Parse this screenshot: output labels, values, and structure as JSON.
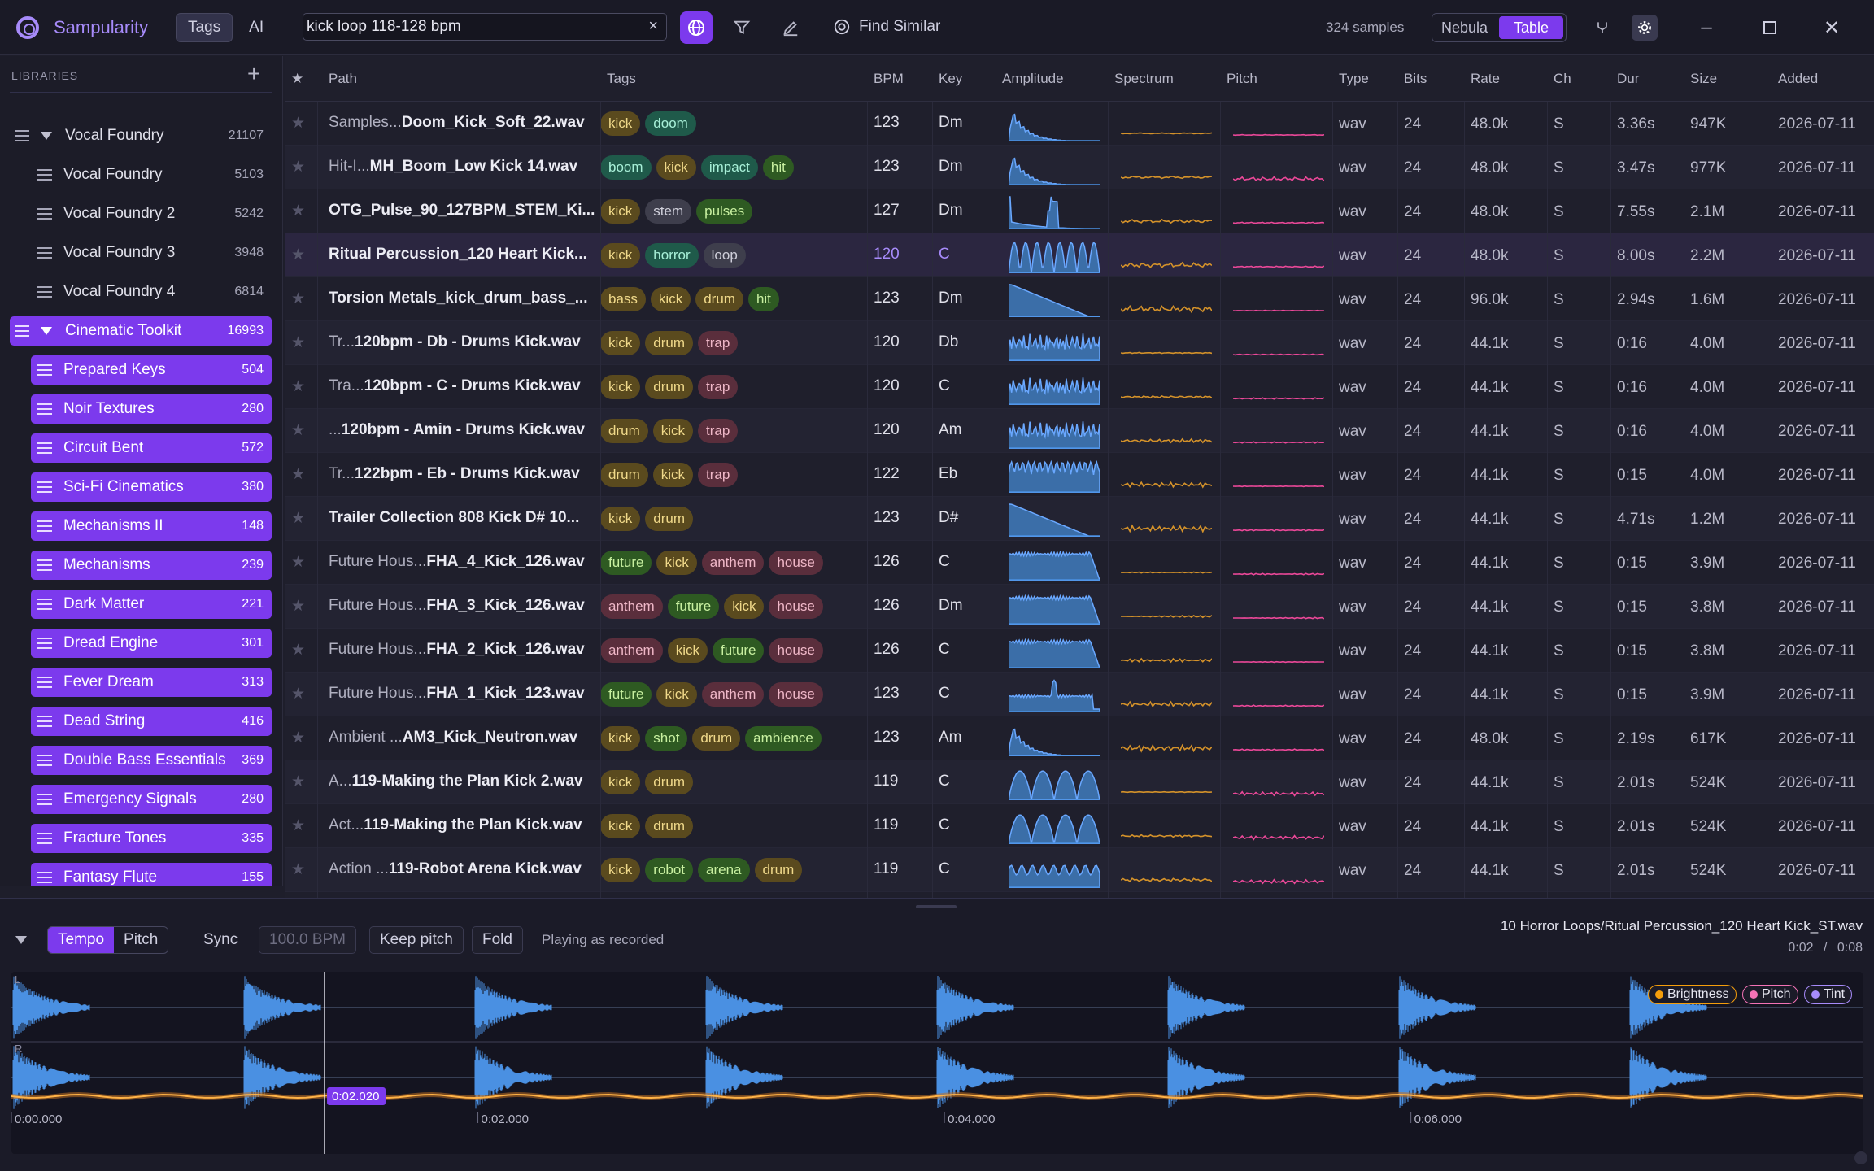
{
  "app": {
    "name": "Sampularity",
    "modes": [
      "Tags",
      "AI"
    ],
    "active_mode": "Tags"
  },
  "search": {
    "value": "kick loop 118-128 bpm"
  },
  "toolbar": {
    "find_similar": "Find Similar",
    "sample_count": "324 samples",
    "views": [
      "Nebula",
      "Table"
    ],
    "active_view": "Table"
  },
  "sidebar": {
    "header": "LIBRARIES",
    "items": [
      {
        "label": "Vocal Foundry",
        "count": "21107",
        "level": 0,
        "expanded": true,
        "style": "plain"
      },
      {
        "label": "Vocal Foundry",
        "count": "5103",
        "level": 1,
        "style": "plain"
      },
      {
        "label": "Vocal Foundry 2",
        "count": "5242",
        "level": 1,
        "style": "plain"
      },
      {
        "label": "Vocal Foundry 3",
        "count": "3948",
        "level": 1,
        "style": "plain"
      },
      {
        "label": "Vocal Foundry 4",
        "count": "6814",
        "level": 1,
        "style": "plain"
      },
      {
        "label": "Cinematic Toolkit",
        "count": "16993",
        "level": 0,
        "expanded": true,
        "style": "selected"
      },
      {
        "label": "Prepared Keys",
        "count": "504",
        "level": 1,
        "style": "selected"
      },
      {
        "label": "Noir Textures",
        "count": "280",
        "level": 1,
        "style": "selected"
      },
      {
        "label": "Circuit Bent",
        "count": "572",
        "level": 1,
        "style": "selected"
      },
      {
        "label": "Sci-Fi Cinematics",
        "count": "380",
        "level": 1,
        "style": "selected"
      },
      {
        "label": "Mechanisms II",
        "count": "148",
        "level": 1,
        "style": "selected"
      },
      {
        "label": "Mechanisms",
        "count": "239",
        "level": 1,
        "style": "selected"
      },
      {
        "label": "Dark Matter",
        "count": "221",
        "level": 1,
        "style": "selected"
      },
      {
        "label": "Dread Engine",
        "count": "301",
        "level": 1,
        "style": "selected"
      },
      {
        "label": "Fever Dream",
        "count": "313",
        "level": 1,
        "style": "selected"
      },
      {
        "label": "Dead String",
        "count": "416",
        "level": 1,
        "style": "selected"
      },
      {
        "label": "Double Bass Essentials",
        "count": "369",
        "level": 1,
        "style": "selected"
      },
      {
        "label": "Emergency Signals",
        "count": "280",
        "level": 1,
        "style": "selected"
      },
      {
        "label": "Fracture Tones",
        "count": "335",
        "level": 1,
        "style": "selected"
      },
      {
        "label": "Fantasy Flute",
        "count": "155",
        "level": 1,
        "style": "selected"
      }
    ]
  },
  "table": {
    "columns": [
      "★",
      "Path",
      "Tags",
      "BPM",
      "Key",
      "Amplitude",
      "Spectrum",
      "Pitch",
      "Type",
      "Bits",
      "Rate",
      "Ch",
      "Dur",
      "Size",
      "Added"
    ],
    "rows": [
      {
        "prefix": "Samples...",
        "name": "Doom_Kick_Soft_22.wav",
        "tags": [
          [
            "kick",
            "amber"
          ],
          [
            "doom",
            "teal"
          ]
        ],
        "bpm": "123",
        "key": "Dm",
        "type": "wav",
        "bits": "24",
        "rate": "48.0k",
        "ch": "S",
        "dur": "3.36s",
        "size": "947K",
        "added": "2026-07-11",
        "amp": "decay"
      },
      {
        "prefix": "Hit-I...",
        "name": "MH_Boom_Low Kick 14.wav",
        "tags": [
          [
            "boom",
            "teal"
          ],
          [
            "kick",
            "amber"
          ],
          [
            "impact",
            "teal"
          ],
          [
            "hit",
            "green"
          ]
        ],
        "bpm": "123",
        "key": "Dm",
        "type": "wav",
        "bits": "24",
        "rate": "48.0k",
        "ch": "S",
        "dur": "3.47s",
        "size": "977K",
        "added": "2026-07-11",
        "amp": "decay"
      },
      {
        "prefix": "",
        "name": "OTG_Pulse_90_127BPM_STEM_Ki...",
        "tags": [
          [
            "kick",
            "amber"
          ],
          [
            "stem",
            "gray"
          ],
          [
            "pulses",
            "green"
          ]
        ],
        "bpm": "127",
        "key": "Dm",
        "type": "wav",
        "bits": "24",
        "rate": "48.0k",
        "ch": "S",
        "dur": "7.55s",
        "size": "2.1M",
        "added": "2026-07-11",
        "amp": "spike"
      },
      {
        "prefix": "",
        "name": "Ritual Percussion_120 Heart Kick...",
        "tags": [
          [
            "kick",
            "amber"
          ],
          [
            "horror",
            "teal"
          ],
          [
            "loop",
            "gray"
          ]
        ],
        "bpm": "120",
        "key": "C",
        "type": "wav",
        "bits": "24",
        "rate": "48.0k",
        "ch": "S",
        "dur": "8.00s",
        "size": "2.2M",
        "added": "2026-07-11",
        "amp": "loop",
        "selected": true
      },
      {
        "prefix": "",
        "name": "Torsion Metals_kick_drum_bass_...",
        "tags": [
          [
            "bass",
            "amber"
          ],
          [
            "kick",
            "amber"
          ],
          [
            "drum",
            "amber"
          ],
          [
            "hit",
            "green"
          ]
        ],
        "bpm": "123",
        "key": "Dm",
        "type": "wav",
        "bits": "24",
        "rate": "96.0k",
        "ch": "S",
        "dur": "2.94s",
        "size": "1.6M",
        "added": "2026-07-11",
        "amp": "slope"
      },
      {
        "prefix": "Tr...",
        "name": "120bpm - Db - Drums Kick.wav",
        "tags": [
          [
            "kick",
            "amber"
          ],
          [
            "drum",
            "amber"
          ],
          [
            "trap",
            "pink"
          ]
        ],
        "bpm": "120",
        "key": "Db",
        "type": "wav",
        "bits": "24",
        "rate": "44.1k",
        "ch": "S",
        "dur": "0:16",
        "size": "4.0M",
        "added": "2026-07-11",
        "amp": "noise"
      },
      {
        "prefix": "Tra...",
        "name": "120bpm - C - Drums Kick.wav",
        "tags": [
          [
            "kick",
            "amber"
          ],
          [
            "drum",
            "amber"
          ],
          [
            "trap",
            "pink"
          ]
        ],
        "bpm": "120",
        "key": "C",
        "type": "wav",
        "bits": "24",
        "rate": "44.1k",
        "ch": "S",
        "dur": "0:16",
        "size": "4.0M",
        "added": "2026-07-11",
        "amp": "noise"
      },
      {
        "prefix": "...",
        "name": "120bpm - Amin - Drums Kick.wav",
        "tags": [
          [
            "drum",
            "amber"
          ],
          [
            "kick",
            "amber"
          ],
          [
            "trap",
            "pink"
          ]
        ],
        "bpm": "120",
        "key": "Am",
        "type": "wav",
        "bits": "24",
        "rate": "44.1k",
        "ch": "S",
        "dur": "0:16",
        "size": "4.0M",
        "added": "2026-07-11",
        "amp": "noise"
      },
      {
        "prefix": "Tr...",
        "name": "122bpm - Eb - Drums Kick.wav",
        "tags": [
          [
            "drum",
            "amber"
          ],
          [
            "kick",
            "amber"
          ],
          [
            "trap",
            "pink"
          ]
        ],
        "bpm": "122",
        "key": "Eb",
        "type": "wav",
        "bits": "24",
        "rate": "44.1k",
        "ch": "S",
        "dur": "0:15",
        "size": "4.0M",
        "added": "2026-07-11",
        "amp": "dense"
      },
      {
        "prefix": "",
        "name": "Trailer Collection 808 Kick D# 10...",
        "tags": [
          [
            "kick",
            "amber"
          ],
          [
            "drum",
            "amber"
          ]
        ],
        "bpm": "123",
        "key": "D#",
        "type": "wav",
        "bits": "24",
        "rate": "44.1k",
        "ch": "S",
        "dur": "4.71s",
        "size": "1.2M",
        "added": "2026-07-11",
        "amp": "slope"
      },
      {
        "prefix": "Future Hous...",
        "name": "FHA_4_Kick_126.wav",
        "tags": [
          [
            "future",
            "green"
          ],
          [
            "kick",
            "amber"
          ],
          [
            "anthem",
            "pink"
          ],
          [
            "house",
            "pink"
          ]
        ],
        "bpm": "126",
        "key": "C",
        "type": "wav",
        "bits": "24",
        "rate": "44.1k",
        "ch": "S",
        "dur": "0:15",
        "size": "3.9M",
        "added": "2026-07-11",
        "amp": "block"
      },
      {
        "prefix": "Future Hous...",
        "name": "FHA_3_Kick_126.wav",
        "tags": [
          [
            "anthem",
            "pink"
          ],
          [
            "future",
            "green"
          ],
          [
            "kick",
            "amber"
          ],
          [
            "house",
            "pink"
          ]
        ],
        "bpm": "126",
        "key": "Dm",
        "type": "wav",
        "bits": "24",
        "rate": "44.1k",
        "ch": "S",
        "dur": "0:15",
        "size": "3.8M",
        "added": "2026-07-11",
        "amp": "block"
      },
      {
        "prefix": "Future Hous...",
        "name": "FHA_2_Kick_126.wav",
        "tags": [
          [
            "anthem",
            "pink"
          ],
          [
            "kick",
            "amber"
          ],
          [
            "future",
            "green"
          ],
          [
            "house",
            "pink"
          ]
        ],
        "bpm": "126",
        "key": "C",
        "type": "wav",
        "bits": "24",
        "rate": "44.1k",
        "ch": "S",
        "dur": "0:15",
        "size": "3.8M",
        "added": "2026-07-11",
        "amp": "block"
      },
      {
        "prefix": "Future Hous...",
        "name": "FHA_1_Kick_123.wav",
        "tags": [
          [
            "future",
            "green"
          ],
          [
            "kick",
            "amber"
          ],
          [
            "anthem",
            "pink"
          ],
          [
            "house",
            "pink"
          ]
        ],
        "bpm": "123",
        "key": "C",
        "type": "wav",
        "bits": "24",
        "rate": "44.1k",
        "ch": "S",
        "dur": "0:15",
        "size": "3.9M",
        "added": "2026-07-11",
        "amp": "blockspike"
      },
      {
        "prefix": "Ambient ...",
        "name": "AM3_Kick_Neutron.wav",
        "tags": [
          [
            "kick",
            "amber"
          ],
          [
            "shot",
            "green"
          ],
          [
            "drum",
            "amber"
          ],
          [
            "ambience",
            "green"
          ]
        ],
        "bpm": "123",
        "key": "Am",
        "type": "wav",
        "bits": "24",
        "rate": "48.0k",
        "ch": "S",
        "dur": "2.19s",
        "size": "617K",
        "added": "2026-07-11",
        "amp": "decay"
      },
      {
        "prefix": "A...",
        "name": "119-Making the Plan Kick 2.wav",
        "tags": [
          [
            "kick",
            "amber"
          ],
          [
            "drum",
            "amber"
          ]
        ],
        "bpm": "119",
        "key": "C",
        "type": "wav",
        "bits": "24",
        "rate": "44.1k",
        "ch": "S",
        "dur": "2.01s",
        "size": "524K",
        "added": "2026-07-11",
        "amp": "hump"
      },
      {
        "prefix": "Act...",
        "name": "119-Making the Plan Kick.wav",
        "tags": [
          [
            "kick",
            "amber"
          ],
          [
            "drum",
            "amber"
          ]
        ],
        "bpm": "119",
        "key": "C",
        "type": "wav",
        "bits": "24",
        "rate": "44.1k",
        "ch": "S",
        "dur": "2.01s",
        "size": "524K",
        "added": "2026-07-11",
        "amp": "hump"
      },
      {
        "prefix": "Action ...",
        "name": "119-Robot Arena Kick.wav",
        "tags": [
          [
            "kick",
            "amber"
          ],
          [
            "robot",
            "green"
          ],
          [
            "arena",
            "green"
          ],
          [
            "drum",
            "amber"
          ]
        ],
        "bpm": "119",
        "key": "C",
        "type": "wav",
        "bits": "24",
        "rate": "44.1k",
        "ch": "S",
        "dur": "2.01s",
        "size": "524K",
        "added": "2026-07-11",
        "amp": "wavy"
      }
    ]
  },
  "player": {
    "segments": [
      "Tempo",
      "Pitch"
    ],
    "active_segment": "Tempo",
    "sync": "Sync",
    "bpm_placeholder": "100.0 BPM",
    "keep_pitch": "Keep pitch",
    "fold": "Fold",
    "status": "Playing as recorded",
    "file": "10 Horror Loops/Ritual Percussion_120 Heart Kick_ST.wav",
    "time_current": "0:02",
    "time_sep": "/",
    "time_total": "0:08",
    "playhead_label": "0:02.020",
    "playhead_fraction": 0.2525,
    "time_ticks": [
      "0:00.000",
      "0:02.000",
      "0:04.000",
      "0:06.000"
    ],
    "channel_labels": [
      "L",
      "R"
    ],
    "legend": [
      {
        "label": "Brightness",
        "color": "#f59e0b"
      },
      {
        "label": "Pitch",
        "color": "#f472b6"
      },
      {
        "label": "Tint",
        "color": "#a78bfa"
      }
    ]
  },
  "colors": {
    "accent": "#7c3aed",
    "wave": "#4a90e2",
    "spectrum": "#d4922a",
    "pitch": "#ec4899"
  }
}
